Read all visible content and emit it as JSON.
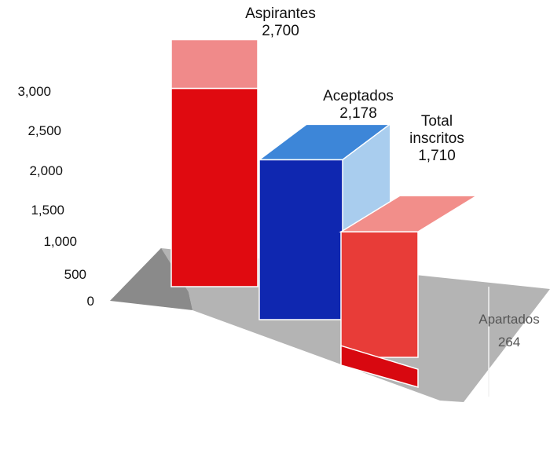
{
  "chart_data": {
    "type": "bar",
    "style": "3d",
    "categories": [
      "Aspirantes",
      "Aceptados",
      "Total inscritos"
    ],
    "values": [
      2700,
      2178,
      1710
    ],
    "value_labels": [
      "2,700",
      "2,178",
      "1,710"
    ],
    "category_labels": [
      [
        "Aspirantes"
      ],
      [
        "Aceptados"
      ],
      [
        "Total",
        "inscritos"
      ]
    ],
    "stacked_segment": {
      "name": "Apartados",
      "value": 264,
      "value_label": "264",
      "category": "Total inscritos"
    },
    "yticks": [
      "0",
      "500",
      "1,000",
      "1,500",
      "2,000",
      "2,500",
      "3,000"
    ],
    "ylim": [
      0,
      3000
    ],
    "title": "",
    "xlabel": "",
    "ylabel": "",
    "grid": false,
    "colors": {
      "aspirantes_front": "#e00a10",
      "aspirantes_top": "#f08a8a",
      "aceptados_front": "#0f27b0",
      "aceptados_top": "#3d86d8",
      "aceptados_side": "#a9cdee",
      "inscritos_front": "#e83c38",
      "inscritos_top": "#f28e8a",
      "apartados_front": "#d80810",
      "floor": "#b4b4b4",
      "floor_dark": "#8a8a8a"
    }
  }
}
